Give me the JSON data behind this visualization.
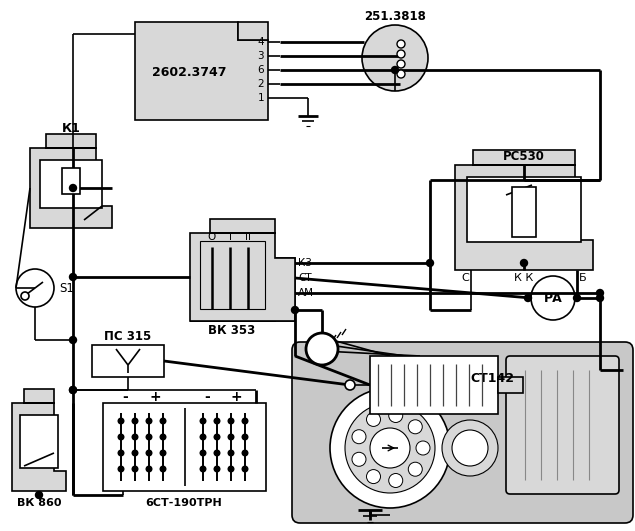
{
  "bg_color": "#ffffff",
  "lc": "#000000",
  "gray": "#c8c8c8",
  "gray2": "#d8d8d8",
  "figsize": [
    6.35,
    5.31
  ],
  "dpi": 100,
  "labels": {
    "relay_2602": "2602.3747",
    "relay_251": "251.3818",
    "rc530": "PC530",
    "vk353": "ВК 353",
    "ct142": "CT142",
    "battery": "6СТ-190ТРН",
    "vk860": "ВК 860",
    "ps315": "ПС 315",
    "s1": "S1",
    "k1": "К1",
    "pa": "РА",
    "kz": "К3",
    "st": "СТ",
    "am": "АМ",
    "o": "О",
    "I": "I",
    "II": "II",
    "c_lbl": "С",
    "kk_lbl": "К К",
    "b_lbl": "Б",
    "minus": "-",
    "plus": "+"
  }
}
